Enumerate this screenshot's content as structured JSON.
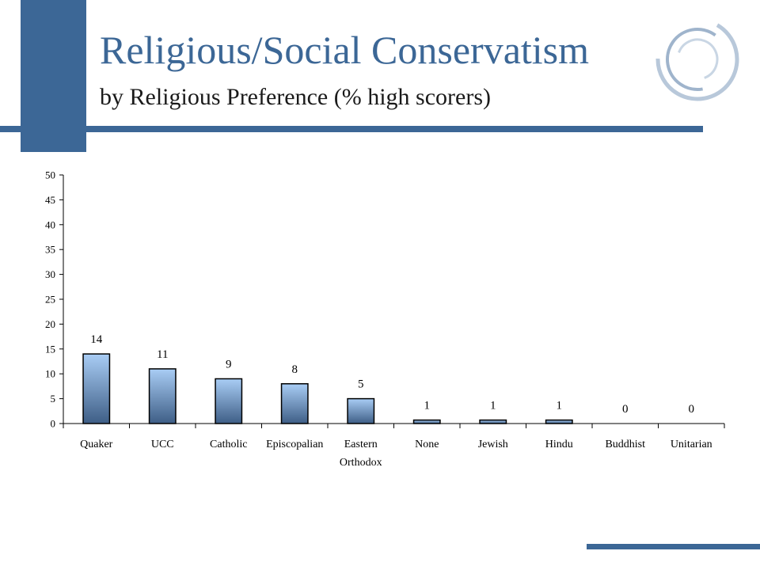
{
  "slide": {
    "title": "Religious/Social Conservatism",
    "subtitle": "by Religious Preference (% high scorers)"
  },
  "colors": {
    "accent": "#3c6796",
    "bar_top": "#a9cdf5",
    "bar_bottom": "#3e5e86"
  },
  "chart_data": {
    "type": "bar",
    "categories": [
      "Quaker",
      "UCC",
      "Catholic",
      "Episcopalian",
      "Eastern Orthodox",
      "None",
      "Jewish",
      "Hindu",
      "Buddhist",
      "Unitarian"
    ],
    "category_lines": [
      [
        "Quaker"
      ],
      [
        "UCC"
      ],
      [
        "Catholic"
      ],
      [
        "Episcopalian"
      ],
      [
        "Eastern",
        "Orthodox"
      ],
      [
        "None"
      ],
      [
        "Jewish"
      ],
      [
        "Hindu"
      ],
      [
        "Buddhist"
      ],
      [
        "Unitarian"
      ]
    ],
    "values": [
      14,
      11,
      9,
      8,
      5,
      1,
      1,
      1,
      0,
      0
    ],
    "data_labels": [
      "14",
      "11",
      "9",
      "8",
      "5",
      "1",
      "1",
      "1",
      "0",
      "0"
    ],
    "bar_values": [
      14,
      11,
      9,
      8,
      5,
      0.7,
      0.7,
      0.7,
      0,
      0
    ],
    "ylim": [
      0,
      50
    ],
    "yticks": [
      "0",
      "5",
      "10",
      "15",
      "20",
      "25",
      "30",
      "35",
      "40",
      "45",
      "50"
    ],
    "title": "",
    "xlabel": "",
    "ylabel": "",
    "grid": false,
    "legend": "none"
  }
}
